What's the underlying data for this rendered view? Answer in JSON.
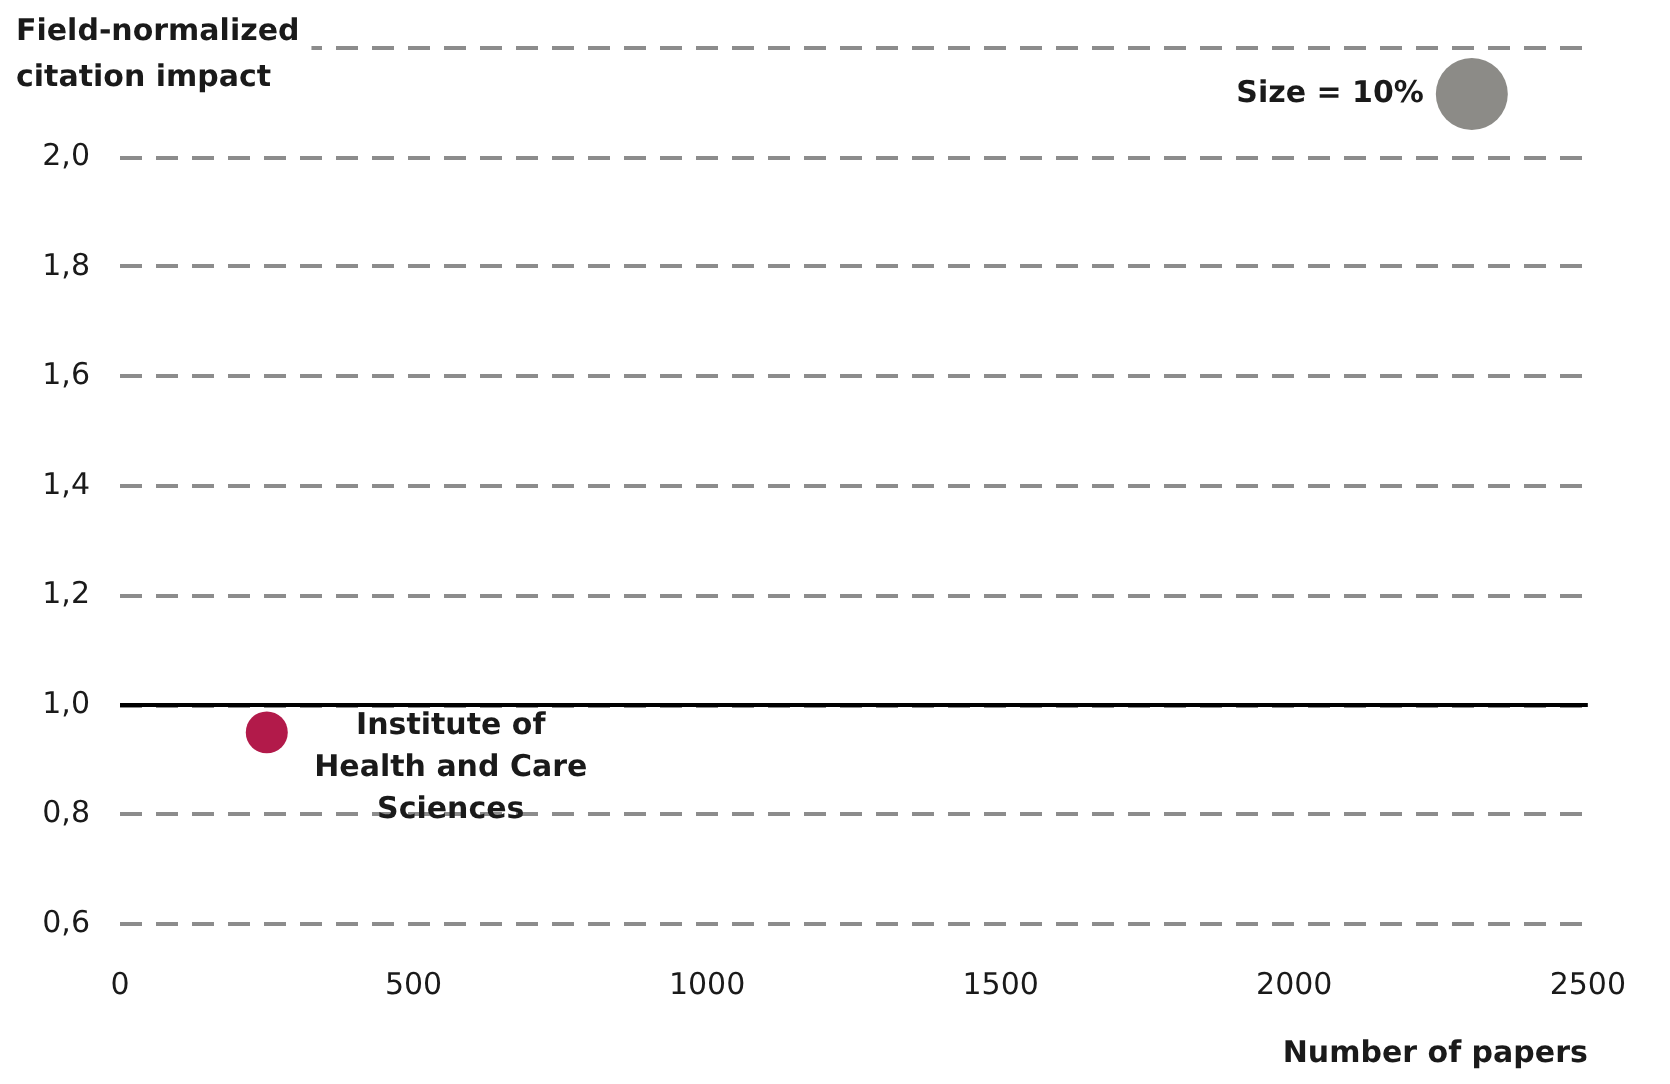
{
  "chart_data": {
    "type": "bubble",
    "xlabel": "Number of papers",
    "ylabel": "Field-normalized citation impact",
    "x": [
      250
    ],
    "series": [
      {
        "name": "Institute of Health and Care Sciences",
        "color": "#b21a4a",
        "values": [
          0.95
        ],
        "sizes": [
          3.4
        ]
      }
    ],
    "size_legend": [
      {
        "value": 10,
        "label": "Size = 10%"
      }
    ],
    "xlim": [
      0,
      2500
    ],
    "xticks": [
      0,
      500,
      1000,
      1500,
      2000,
      2500
    ],
    "ylim": [
      0.6,
      2.2
    ],
    "yticks": [
      {
        "value": 0.6,
        "label": "0,6"
      },
      {
        "value": 0.8,
        "label": "0,8"
      },
      {
        "value": 1.0,
        "label": "1,0"
      },
      {
        "value": 1.2,
        "label": "1,2"
      },
      {
        "value": 1.4,
        "label": "1,4"
      },
      {
        "value": 1.6,
        "label": "1,6"
      },
      {
        "value": 1.8,
        "label": "1,8"
      },
      {
        "value": 2.0,
        "label": "2,0"
      },
      {
        "value": 2.2,
        "label": null
      }
    ],
    "ref_lines": [
      {
        "axis": "y",
        "value": 1.0,
        "color": "#000000"
      }
    ],
    "grid": "y",
    "marker": "circle"
  }
}
